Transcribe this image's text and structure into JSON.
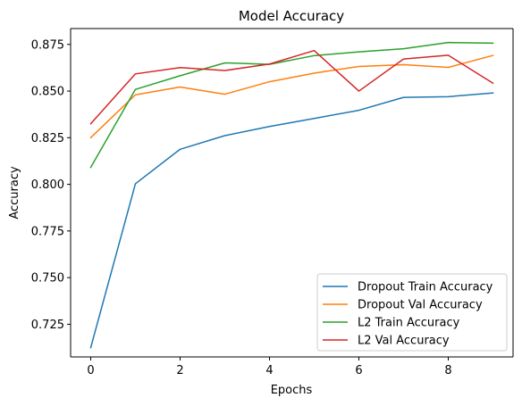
{
  "chart_data": {
    "type": "line",
    "title": "Model Accuracy",
    "xlabel": "Epochs",
    "ylabel": "Accuracy",
    "x": [
      0,
      1,
      2,
      3,
      4,
      5,
      6,
      7,
      8,
      9
    ],
    "xlim": [
      -0.45,
      9.45
    ],
    "ylim": [
      0.7075,
      0.8835
    ],
    "xticks": [
      0,
      2,
      4,
      6,
      8
    ],
    "xtick_labels": [
      "0",
      "2",
      "4",
      "6",
      "8"
    ],
    "yticks": [
      0.725,
      0.75,
      0.775,
      0.8,
      0.825,
      0.85,
      0.875
    ],
    "ytick_labels": [
      "0.725",
      "0.750",
      "0.775",
      "0.800",
      "0.825",
      "0.850",
      "0.875"
    ],
    "grid": false,
    "legend_position": "lower-right",
    "series": [
      {
        "name": "Dropout Train Accuracy",
        "color": "#1f77b4",
        "values": [
          0.7125,
          0.8003,
          0.8188,
          0.8261,
          0.831,
          0.8353,
          0.8397,
          0.8466,
          0.847,
          0.849
        ]
      },
      {
        "name": "Dropout Val Accuracy",
        "color": "#ff7f0e",
        "values": [
          0.825,
          0.848,
          0.8522,
          0.8483,
          0.855,
          0.8596,
          0.8632,
          0.8641,
          0.8627,
          0.8691
        ]
      },
      {
        "name": "L2 Train Accuracy",
        "color": "#2ca02c",
        "values": [
          0.8091,
          0.8509,
          0.8582,
          0.8651,
          0.8643,
          0.869,
          0.871,
          0.8727,
          0.876,
          0.8757
        ]
      },
      {
        "name": "L2 Val Accuracy",
        "color": "#d62728",
        "values": [
          0.8325,
          0.8592,
          0.8626,
          0.861,
          0.8645,
          0.8717,
          0.85,
          0.8672,
          0.8692,
          0.8542
        ]
      }
    ]
  }
}
